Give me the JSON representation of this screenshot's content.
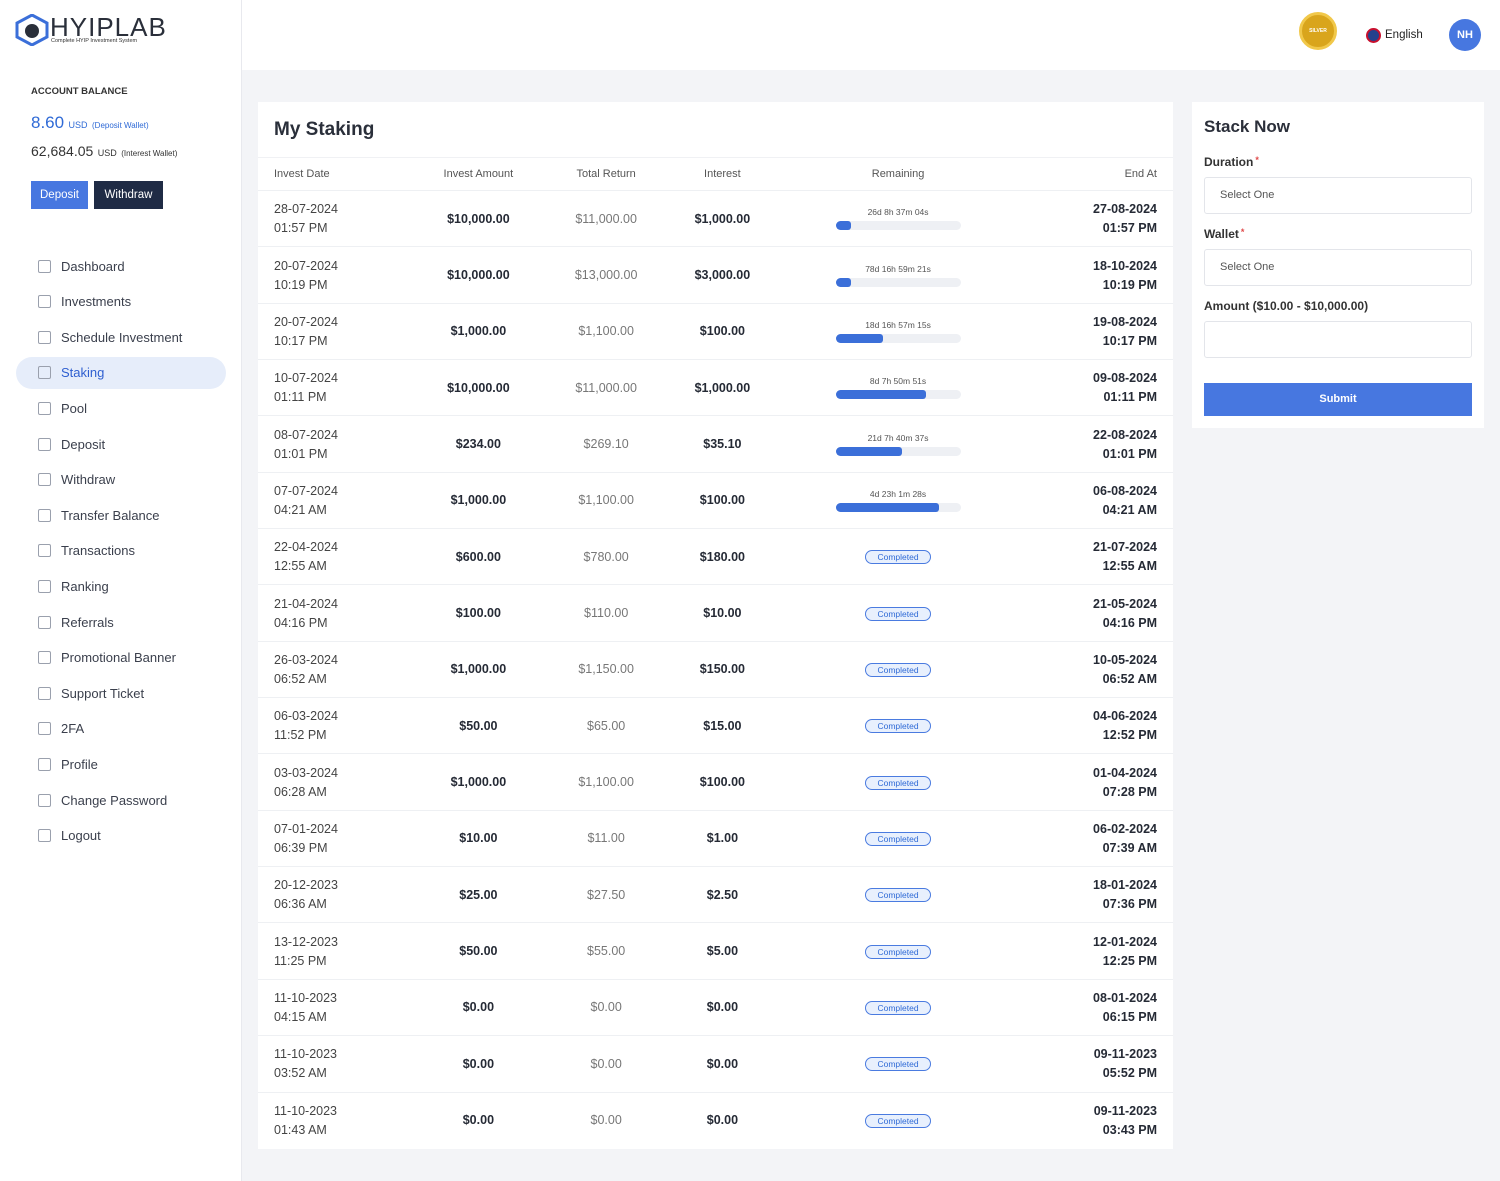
{
  "sidebar": {
    "logo": "HYIPLAB",
    "logo_tagline": "Complete HYIP Investment System",
    "balance_title": "ACCOUNT BALANCE",
    "balances": [
      {
        "amount": "8.60",
        "currency": "USD",
        "wallet": "(Deposit Wallet)"
      },
      {
        "amount": "62,684.05",
        "currency": "USD",
        "wallet": "(Interest Wallet)"
      }
    ],
    "buttons": [
      "Deposit",
      "Withdraw"
    ],
    "menu": [
      "Dashboard",
      "Investments",
      "Schedule Investment",
      "Staking",
      "Pool",
      "Deposit",
      "Withdraw",
      "Transfer Balance",
      "Transactions",
      "Ranking",
      "Referrals",
      "Promotional Banner",
      "Support Ticket",
      "2FA",
      "Profile",
      "Change Password",
      "Logout"
    ],
    "active_menu": 3
  },
  "header": {
    "badge": "SILVER",
    "language": "English",
    "avatar": "NH"
  },
  "staking": {
    "title": "My Staking",
    "columns": [
      "Invest Date",
      "Invest Amount",
      "Total Return",
      "Interest",
      "Remaining",
      "End At"
    ],
    "rows": [
      {
        "invest_date": "28-07-2024",
        "invest_time": "01:57 PM",
        "amount": "$10,000.00",
        "total_return": "$11,000.00",
        "interest": "$1,000.00",
        "remaining": "26d 8h 37m 04s",
        "progress": 12,
        "end_date": "27-08-2024",
        "end_time": "01:57 PM"
      },
      {
        "invest_date": "20-07-2024",
        "invest_time": "10:19 PM",
        "amount": "$10,000.00",
        "total_return": "$13,000.00",
        "interest": "$3,000.00",
        "remaining": "78d 16h 59m 21s",
        "progress": 12,
        "end_date": "18-10-2024",
        "end_time": "10:19 PM"
      },
      {
        "invest_date": "20-07-2024",
        "invest_time": "10:17 PM",
        "amount": "$1,000.00",
        "total_return": "$1,100.00",
        "interest": "$100.00",
        "remaining": "18d 16h 57m 15s",
        "progress": 38,
        "end_date": "19-08-2024",
        "end_time": "10:17 PM"
      },
      {
        "invest_date": "10-07-2024",
        "invest_time": "01:11 PM",
        "amount": "$10,000.00",
        "total_return": "$11,000.00",
        "interest": "$1,000.00",
        "remaining": "8d 7h 50m 51s",
        "progress": 72,
        "end_date": "09-08-2024",
        "end_time": "01:11 PM"
      },
      {
        "invest_date": "08-07-2024",
        "invest_time": "01:01 PM",
        "amount": "$234.00",
        "total_return": "$269.10",
        "interest": "$35.10",
        "remaining": "21d 7h 40m 37s",
        "progress": 53,
        "end_date": "22-08-2024",
        "end_time": "01:01 PM"
      },
      {
        "invest_date": "07-07-2024",
        "invest_time": "04:21 AM",
        "amount": "$1,000.00",
        "total_return": "$1,100.00",
        "interest": "$100.00",
        "remaining": "4d 23h 1m 28s",
        "progress": 83,
        "end_date": "06-08-2024",
        "end_time": "04:21 AM"
      },
      {
        "invest_date": "22-04-2024",
        "invest_time": "12:55 AM",
        "amount": "$600.00",
        "total_return": "$780.00",
        "interest": "$180.00",
        "remaining": "Completed",
        "end_date": "21-07-2024",
        "end_time": "12:55 AM"
      },
      {
        "invest_date": "21-04-2024",
        "invest_time": "04:16 PM",
        "amount": "$100.00",
        "total_return": "$110.00",
        "interest": "$10.00",
        "remaining": "Completed",
        "end_date": "21-05-2024",
        "end_time": "04:16 PM"
      },
      {
        "invest_date": "26-03-2024",
        "invest_time": "06:52 AM",
        "amount": "$1,000.00",
        "total_return": "$1,150.00",
        "interest": "$150.00",
        "remaining": "Completed",
        "end_date": "10-05-2024",
        "end_time": "06:52 AM"
      },
      {
        "invest_date": "06-03-2024",
        "invest_time": "11:52 PM",
        "amount": "$50.00",
        "total_return": "$65.00",
        "interest": "$15.00",
        "remaining": "Completed",
        "end_date": "04-06-2024",
        "end_time": "12:52 PM"
      },
      {
        "invest_date": "03-03-2024",
        "invest_time": "06:28 AM",
        "amount": "$1,000.00",
        "total_return": "$1,100.00",
        "interest": "$100.00",
        "remaining": "Completed",
        "end_date": "01-04-2024",
        "end_time": "07:28 PM"
      },
      {
        "invest_date": "07-01-2024",
        "invest_time": "06:39 PM",
        "amount": "$10.00",
        "total_return": "$11.00",
        "interest": "$1.00",
        "remaining": "Completed",
        "end_date": "06-02-2024",
        "end_time": "07:39 AM"
      },
      {
        "invest_date": "20-12-2023",
        "invest_time": "06:36 AM",
        "amount": "$25.00",
        "total_return": "$27.50",
        "interest": "$2.50",
        "remaining": "Completed",
        "end_date": "18-01-2024",
        "end_time": "07:36 PM"
      },
      {
        "invest_date": "13-12-2023",
        "invest_time": "11:25 PM",
        "amount": "$50.00",
        "total_return": "$55.00",
        "interest": "$5.00",
        "remaining": "Completed",
        "end_date": "12-01-2024",
        "end_time": "12:25 PM"
      },
      {
        "invest_date": "11-10-2023",
        "invest_time": "04:15 AM",
        "amount": "$0.00",
        "total_return": "$0.00",
        "interest": "$0.00",
        "remaining": "Completed",
        "end_date": "08-01-2024",
        "end_time": "06:15 PM"
      },
      {
        "invest_date": "11-10-2023",
        "invest_time": "03:52 AM",
        "amount": "$0.00",
        "total_return": "$0.00",
        "interest": "$0.00",
        "remaining": "Completed",
        "end_date": "09-11-2023",
        "end_time": "05:52 PM"
      },
      {
        "invest_date": "11-10-2023",
        "invest_time": "01:43 AM",
        "amount": "$0.00",
        "total_return": "$0.00",
        "interest": "$0.00",
        "remaining": "Completed",
        "end_date": "09-11-2023",
        "end_time": "03:43 PM"
      }
    ]
  },
  "form": {
    "title": "Stack Now",
    "required_mark": "*",
    "duration_label": "Duration",
    "duration_placeholder": "Select One",
    "wallet_label": "Wallet",
    "wallet_placeholder": "Select One",
    "amount_label": "Amount ($10.00 - $10,000.00)",
    "submit": "Submit"
  }
}
